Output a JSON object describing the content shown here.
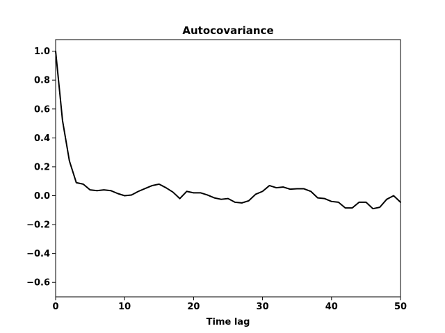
{
  "chart_data": {
    "type": "line",
    "title": "Autocovariance",
    "xlabel": "Time lag",
    "ylabel": "",
    "xlim": [
      0,
      50
    ],
    "ylim": [
      -0.7,
      1.08
    ],
    "xticks": [
      0,
      10,
      20,
      30,
      40,
      50
    ],
    "yticks": [
      -0.6,
      -0.4,
      -0.2,
      0.0,
      0.2,
      0.4,
      0.6,
      0.8,
      1.0
    ],
    "ytick_labels": [
      "−0.6",
      "−0.4",
      "−0.2",
      "0.0",
      "0.2",
      "0.4",
      "0.6",
      "0.8",
      "1.0"
    ],
    "xtick_labels": [
      "0",
      "10",
      "20",
      "30",
      "40",
      "50"
    ],
    "grid": false,
    "line_color": "#000000",
    "series": [
      {
        "x": [
          0,
          1,
          2,
          3,
          4,
          5,
          6,
          7,
          8,
          9,
          10,
          11,
          12,
          13,
          14,
          15,
          16,
          17,
          18,
          19,
          20,
          21,
          22,
          23,
          24,
          25,
          26,
          27,
          28,
          29,
          30,
          31,
          32,
          33,
          34,
          35,
          36,
          37,
          38,
          39,
          40,
          41,
          42,
          43,
          44,
          45,
          46,
          47,
          48,
          49,
          50
        ],
        "values": [
          1.0,
          0.52,
          0.24,
          0.09,
          0.08,
          0.04,
          0.035,
          0.04,
          0.035,
          0.015,
          0.0,
          0.005,
          0.03,
          0.05,
          0.07,
          0.08,
          0.055,
          0.025,
          -0.02,
          0.03,
          0.02,
          0.02,
          0.005,
          -0.015,
          -0.025,
          -0.02,
          -0.045,
          -0.05,
          -0.035,
          0.01,
          0.03,
          0.07,
          0.055,
          0.06,
          0.045,
          0.048,
          0.048,
          0.03,
          -0.015,
          -0.02,
          -0.04,
          -0.045,
          -0.085,
          -0.085,
          -0.045,
          -0.045,
          -0.09,
          -0.08,
          -0.025,
          0.0,
          -0.045
        ]
      }
    ]
  }
}
